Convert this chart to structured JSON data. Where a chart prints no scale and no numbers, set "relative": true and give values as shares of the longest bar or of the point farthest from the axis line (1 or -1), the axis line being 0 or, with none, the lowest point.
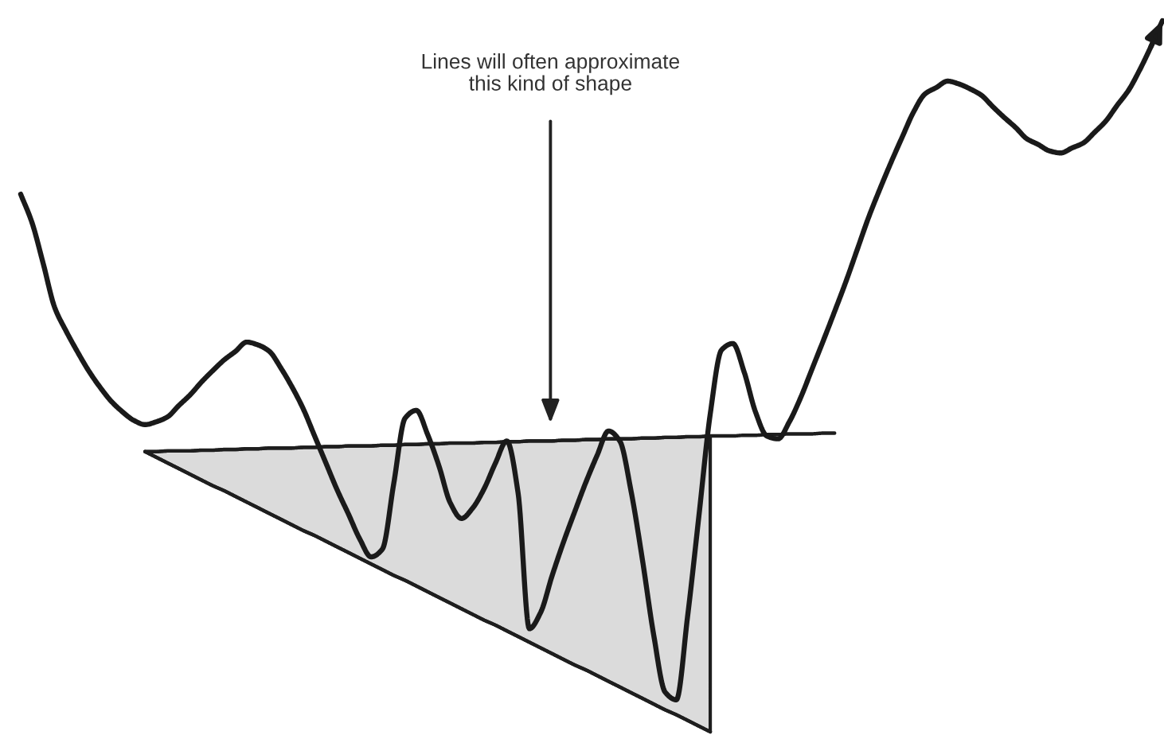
{
  "chart_data": {
    "type": "line",
    "relative": true,
    "tick_labels": false,
    "categories": [
      null,
      null,
      null,
      null,
      null,
      null,
      null,
      null,
      null,
      null,
      null,
      null,
      null,
      null,
      null,
      null,
      null,
      null,
      null,
      null,
      null,
      null,
      null,
      null,
      null,
      null,
      null,
      null,
      null,
      null,
      null,
      null,
      null,
      null,
      null,
      null,
      null,
      null,
      null,
      null,
      null,
      null,
      null,
      null,
      null,
      null,
      null,
      null,
      null,
      null,
      null,
      null,
      null,
      null,
      null,
      null,
      null,
      null,
      null,
      null,
      null,
      null,
      null,
      null,
      null,
      null,
      null,
      null,
      null,
      null,
      null,
      null,
      null,
      null,
      null,
      null,
      null,
      null,
      null,
      null,
      null,
      null,
      null,
      null,
      null,
      null,
      null,
      null,
      null,
      null,
      null,
      null,
      null,
      null,
      null,
      null,
      null,
      null,
      null,
      null,
      null,
      null
    ],
    "series": [
      {
        "color": "#1e1e1e",
        "values": [
          null,
          null,
          null,
          null,
          null,
          null,
          null,
          null,
          null,
          null,
          null,
          0.394,
          0.386,
          0.378,
          0.37,
          0.362,
          0.354,
          0.346,
          0.339,
          0.331,
          0.323,
          0.315,
          0.307,
          0.299,
          0.291,
          0.283,
          0.276,
          0.268,
          0.26,
          0.252,
          0.244,
          0.236,
          0.228,
          0.22,
          0.213,
          0.205,
          0.197,
          0.189,
          0.181,
          0.173,
          0.165,
          0.157,
          0.15,
          0.142,
          0.134,
          0.126,
          0.118,
          0.11,
          0.102,
          0.094,
          0.087,
          0.079,
          0.071,
          0.063,
          0.055,
          0.047,
          0.039,
          0.031,
          0.024,
          0.016,
          0.008,
          0,
          null,
          null,
          null,
          null,
          null,
          null,
          null,
          null,
          null,
          null,
          null,
          null,
          null,
          null,
          null,
          null,
          null,
          null,
          null,
          null,
          null,
          null,
          null,
          null,
          null,
          null,
          null,
          null,
          null,
          null,
          null,
          null,
          null,
          null,
          null,
          null,
          null,
          null,
          null,
          null
        ]
      },
      {
        "color": "#1e1e1e",
        "values": [
          null,
          null,
          null,
          null,
          null,
          null,
          null,
          null,
          null,
          null,
          null,
          0.394,
          0.394,
          0.395,
          0.395,
          0.395,
          0.396,
          0.396,
          0.397,
          0.397,
          0.398,
          0.398,
          0.399,
          0.399,
          0.399,
          0.4,
          0.4,
          0.401,
          0.401,
          0.402,
          0.402,
          0.402,
          0.403,
          0.403,
          0.404,
          0.404,
          0.405,
          0.405,
          0.406,
          0.406,
          0.406,
          0.407,
          0.407,
          0.408,
          0.408,
          0.409,
          0.409,
          0.409,
          0.41,
          0.41,
          0.411,
          0.411,
          0.412,
          0.412,
          0.412,
          0.413,
          0.413,
          0.414,
          0.414,
          0.415,
          0.415,
          0.416,
          0.416,
          0.416,
          0.417,
          0.417,
          0.418,
          0.418,
          0.419,
          0.419,
          0.419,
          0.42,
          0.42,
          null,
          null,
          null,
          null,
          null,
          null,
          null,
          null,
          null,
          null,
          null,
          null,
          null,
          null,
          null,
          null,
          null,
          null,
          null,
          null,
          null,
          null,
          null,
          null,
          null,
          null,
          null,
          null,
          null
        ],
        "lower": [
          null,
          null,
          null,
          null,
          null,
          null,
          null,
          null,
          null,
          null,
          null,
          0.394,
          0.386,
          0.378,
          0.37,
          0.362,
          0.354,
          0.346,
          0.339,
          0.331,
          0.323,
          0.315,
          0.307,
          0.299,
          0.291,
          0.283,
          0.276,
          0.268,
          0.26,
          0.252,
          0.244,
          0.236,
          0.228,
          0.22,
          0.213,
          0.205,
          0.197,
          0.189,
          0.181,
          0.173,
          0.165,
          0.157,
          0.15,
          0.142,
          0.134,
          0.126,
          0.118,
          0.11,
          0.102,
          0.094,
          0.087,
          0.079,
          0.071,
          0.063,
          0.055,
          0.047,
          0.039,
          0.031,
          0.024,
          0.016,
          0.008,
          0,
          null,
          null,
          null,
          null,
          null,
          null,
          null,
          null,
          null,
          null,
          null,
          null,
          null,
          null,
          null,
          null,
          null,
          null,
          null,
          null,
          null,
          null,
          null,
          null,
          null,
          null,
          null,
          null,
          null,
          null,
          null,
          null,
          null,
          null,
          null,
          null,
          null,
          null,
          null,
          null
        ],
        "upper": [
          null,
          null,
          null,
          null,
          null,
          null,
          null,
          null,
          null,
          null,
          null,
          0.394,
          0.394,
          0.395,
          0.395,
          0.395,
          0.396,
          0.396,
          0.397,
          0.397,
          0.398,
          0.398,
          0.399,
          0.399,
          0.399,
          0.4,
          0.4,
          0.401,
          0.401,
          0.402,
          0.402,
          0.402,
          0.403,
          0.403,
          0.404,
          0.404,
          0.405,
          0.405,
          0.406,
          0.406,
          0.406,
          0.407,
          0.407,
          0.408,
          0.408,
          0.409,
          0.409,
          0.409,
          0.41,
          0.41,
          0.411,
          0.411,
          0.412,
          0.412,
          0.412,
          0.413,
          0.413,
          0.414,
          0.414,
          0.415,
          0.415,
          0.416,
          null,
          null,
          null,
          null,
          null,
          null,
          null,
          null,
          null,
          null,
          null,
          null,
          null,
          null,
          null,
          null,
          null,
          null,
          null,
          null,
          null,
          null,
          null,
          null,
          null,
          null,
          null,
          null,
          null,
          null,
          null,
          null,
          null,
          null,
          null,
          null,
          null,
          null,
          null,
          null
        ]
      },
      {
        "color": "#1a1a1a",
        "values": [
          0.756,
          0.716,
          0.658,
          0.597,
          0.564,
          0.535,
          0.508,
          0.485,
          0.465,
          0.45,
          0.438,
          0.432,
          0.436,
          0.443,
          0.459,
          0.474,
          0.492,
          0.508,
          0.523,
          0.535,
          0.548,
          0.544,
          0.535,
          0.512,
          0.485,
          0.454,
          0.416,
          0.378,
          0.34,
          0.306,
          0.271,
          0.246,
          0.257,
          0.349,
          0.441,
          0.452,
          0.418,
          0.374,
          0.322,
          0.3,
          0.315,
          0.342,
          0.378,
          0.409,
          0.336,
          0.145,
          0.168,
          0.219,
          0.266,
          0.309,
          0.351,
          0.389,
          0.423,
          0.409,
          0.338,
          0.242,
          0.136,
          0.056,
          0.045,
          0.163,
          0.304,
          0.447,
          0.537,
          0.546,
          0.506,
          0.45,
          0.416,
          0.412,
          0.436,
          0.47,
          0.51,
          0.55,
          0.591,
          0.633,
          0.678,
          0.723,
          0.763,
          0.801,
          0.837,
          0.872,
          0.897,
          0.906,
          0.915,
          0.911,
          0.904,
          0.895,
          0.879,
          0.864,
          0.85,
          0.834,
          0.826,
          0.817,
          0.814,
          0.821,
          0.828,
          0.843,
          0.859,
          0.881,
          0.902,
          0.931,
          0.964,
          1.0
        ]
      }
    ],
    "annotations": [
      "Lines will often approximate\nthis kind of shape"
    ]
  }
}
